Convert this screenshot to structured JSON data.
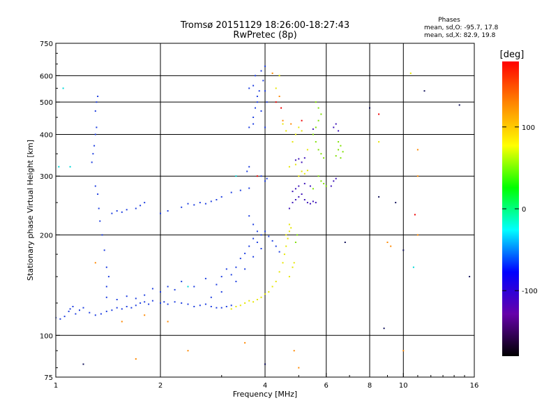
{
  "chart_data": {
    "type": "scatter",
    "title": "Tromsø 20151129 18:26:00-18:27:43",
    "subtitle": "RwPretec (8p)",
    "xlabel": "Frequency [MHz]",
    "ylabel": "Stationary phase Virtual Height [km]",
    "x_scale": "log",
    "y_scale": "log",
    "xlim": [
      1,
      16
    ],
    "ylim": [
      75,
      750
    ],
    "x_ticks": [
      1,
      2,
      4,
      6,
      8,
      10,
      16
    ],
    "x_tick_labels": [
      "1",
      "2",
      "4",
      "6",
      "8",
      "10",
      "16"
    ],
    "y_ticks": [
      75,
      100,
      200,
      300,
      400,
      500,
      600,
      750
    ],
    "y_tick_labels": [
      "75",
      "100",
      "200",
      "300",
      "400",
      "500",
      "600",
      "750"
    ],
    "grid": true,
    "legend": {
      "heading": "Phases",
      "lines": [
        "mean, sd,O: -95.7, 17.8",
        "mean, sd,X:  82.9, 19.8"
      ],
      "placement": "top-right"
    },
    "colorbar": {
      "label": "[deg]",
      "range": [
        -180,
        180
      ],
      "ticks": [
        100,
        0,
        -100
      ],
      "tick_labels": [
        "100",
        "0",
        "-100"
      ],
      "stops": [
        "#ff0000",
        "#ff8800",
        "#ffff00",
        "#00ff00",
        "#00ffff",
        "#0000ff",
        "#6600aa",
        "#000000"
      ],
      "placement": "right"
    },
    "series": [
      {
        "name": "",
        "color": "#1f3fe0",
        "points": [
          [
            1.0,
            113
          ],
          [
            1.03,
            112
          ],
          [
            1.06,
            114
          ],
          [
            1.09,
            118
          ],
          [
            1.1,
            120
          ],
          [
            1.12,
            122
          ],
          [
            1.14,
            116
          ],
          [
            1.17,
            119
          ],
          [
            1.2,
            121
          ],
          [
            1.25,
            117
          ],
          [
            1.3,
            115
          ],
          [
            1.35,
            116
          ],
          [
            1.4,
            118
          ],
          [
            1.45,
            119
          ],
          [
            1.5,
            121
          ],
          [
            1.55,
            120
          ],
          [
            1.6,
            122
          ],
          [
            1.65,
            121
          ],
          [
            1.7,
            123
          ],
          [
            1.75,
            125
          ],
          [
            1.8,
            126
          ],
          [
            1.85,
            124
          ],
          [
            1.9,
            127
          ],
          [
            2.0,
            125
          ],
          [
            2.05,
            126
          ],
          [
            2.1,
            124
          ],
          [
            2.2,
            126
          ],
          [
            2.3,
            125
          ],
          [
            2.4,
            124
          ],
          [
            2.5,
            122
          ],
          [
            2.6,
            123
          ],
          [
            2.7,
            124
          ],
          [
            2.8,
            122
          ],
          [
            2.9,
            121
          ],
          [
            3.0,
            121
          ],
          [
            3.1,
            122
          ],
          [
            3.2,
            123
          ],
          [
            1.4,
            130
          ],
          [
            1.5,
            128
          ],
          [
            1.6,
            131
          ],
          [
            1.7,
            129
          ],
          [
            1.8,
            132
          ],
          [
            1.9,
            138
          ],
          [
            2.0,
            135
          ],
          [
            2.1,
            140
          ],
          [
            2.2,
            137
          ],
          [
            2.3,
            145
          ],
          [
            2.5,
            140
          ],
          [
            2.7,
            148
          ],
          [
            2.9,
            142
          ],
          [
            3.0,
            150
          ],
          [
            3.1,
            158
          ],
          [
            3.2,
            152
          ],
          [
            3.3,
            160
          ],
          [
            3.4,
            170
          ],
          [
            3.5,
            176
          ],
          [
            3.6,
            185
          ],
          [
            3.7,
            195
          ],
          [
            3.8,
            190
          ],
          [
            3.9,
            200
          ],
          [
            4.0,
            205
          ],
          [
            4.1,
            198
          ],
          [
            4.2,
            192
          ],
          [
            4.3,
            185
          ],
          [
            4.4,
            178
          ],
          [
            2.8,
            130
          ],
          [
            3.0,
            135
          ],
          [
            3.3,
            145
          ],
          [
            3.5,
            158
          ],
          [
            3.7,
            172
          ],
          [
            3.9,
            182
          ],
          [
            3.6,
            228
          ],
          [
            3.7,
            215
          ],
          [
            3.8,
            205
          ],
          [
            1.45,
            232
          ],
          [
            1.5,
            236
          ],
          [
            1.55,
            234
          ],
          [
            1.6,
            238
          ],
          [
            1.7,
            240
          ],
          [
            1.75,
            245
          ],
          [
            1.8,
            250
          ],
          [
            2.0,
            232
          ],
          [
            2.1,
            236
          ],
          [
            2.3,
            242
          ],
          [
            2.4,
            248
          ],
          [
            2.5,
            246
          ],
          [
            2.6,
            250
          ],
          [
            2.7,
            248
          ],
          [
            2.8,
            252
          ],
          [
            2.9,
            255
          ],
          [
            3.0,
            260
          ],
          [
            3.2,
            268
          ],
          [
            3.4,
            272
          ],
          [
            3.6,
            276
          ],
          [
            1.27,
            330
          ],
          [
            1.28,
            350
          ],
          [
            1.29,
            370
          ],
          [
            1.3,
            400
          ],
          [
            1.31,
            420
          ],
          [
            1.3,
            470
          ],
          [
            1.31,
            500
          ],
          [
            1.32,
            520
          ],
          [
            1.3,
            280
          ],
          [
            1.32,
            265
          ],
          [
            1.33,
            240
          ],
          [
            1.34,
            220
          ],
          [
            1.36,
            200
          ],
          [
            1.38,
            180
          ],
          [
            1.4,
            160
          ],
          [
            1.42,
            150
          ],
          [
            1.4,
            140
          ],
          [
            3.6,
            320
          ],
          [
            3.6,
            420
          ],
          [
            3.7,
            430
          ],
          [
            3.7,
            450
          ],
          [
            3.75,
            480
          ],
          [
            3.8,
            500
          ],
          [
            3.8,
            520
          ],
          [
            3.85,
            540
          ],
          [
            3.6,
            550
          ],
          [
            3.7,
            560
          ],
          [
            3.75,
            600
          ],
          [
            3.9,
            620
          ],
          [
            4.0,
            640
          ],
          [
            3.95,
            580
          ],
          [
            4.0,
            540
          ],
          [
            4.05,
            500
          ],
          [
            3.9,
            470
          ],
          [
            4.0,
            420
          ],
          [
            3.55,
            310
          ],
          [
            3.9,
            300
          ],
          [
            4.0,
            290
          ],
          [
            4.05,
            295
          ]
        ]
      },
      {
        "name": "",
        "color": "#3a10b8",
        "points": [
          [
            4.7,
            240
          ],
          [
            4.8,
            250
          ],
          [
            4.9,
            255
          ],
          [
            5.0,
            260
          ],
          [
            5.1,
            265
          ],
          [
            5.2,
            255
          ],
          [
            5.3,
            250
          ],
          [
            5.4,
            248
          ],
          [
            5.5,
            252
          ],
          [
            5.6,
            250
          ],
          [
            4.8,
            270
          ],
          [
            4.9,
            275
          ],
          [
            5.0,
            280
          ],
          [
            5.2,
            285
          ],
          [
            5.4,
            280
          ],
          [
            6.2,
            280
          ],
          [
            6.3,
            290
          ],
          [
            6.4,
            295
          ],
          [
            6.3,
            420
          ],
          [
            6.4,
            430
          ],
          [
            6.5,
            410
          ],
          [
            4.9,
            335
          ],
          [
            5.0,
            338
          ],
          [
            5.1,
            330
          ],
          [
            5.2,
            340
          ],
          [
            5.5,
            415
          ]
        ]
      },
      {
        "name": "",
        "color": "#e6e600",
        "points": [
          [
            3.2,
            120
          ],
          [
            3.3,
            122
          ],
          [
            3.4,
            123
          ],
          [
            3.5,
            125
          ],
          [
            3.6,
            127
          ],
          [
            3.7,
            126
          ],
          [
            3.8,
            128
          ],
          [
            3.9,
            130
          ],
          [
            4.0,
            133
          ],
          [
            4.1,
            135
          ],
          [
            4.2,
            140
          ],
          [
            4.3,
            145
          ],
          [
            4.4,
            155
          ],
          [
            4.5,
            165
          ],
          [
            4.55,
            175
          ],
          [
            4.6,
            185
          ],
          [
            4.65,
            195
          ],
          [
            4.7,
            205
          ],
          [
            4.75,
            210
          ],
          [
            4.6,
            200
          ],
          [
            4.7,
            215
          ],
          [
            4.8,
            160
          ],
          [
            4.85,
            165
          ],
          [
            4.7,
            150
          ],
          [
            4.9,
            400
          ],
          [
            5.0,
            420
          ],
          [
            5.1,
            410
          ],
          [
            4.8,
            380
          ],
          [
            5.3,
            360
          ],
          [
            5.0,
            300
          ],
          [
            5.1,
            310
          ],
          [
            5.2,
            305
          ],
          [
            5.3,
            312
          ],
          [
            4.7,
            320
          ],
          [
            4.9,
            325
          ],
          [
            4.5,
            430
          ],
          [
            4.6,
            410
          ],
          [
            4.4,
            600
          ],
          [
            4.3,
            550
          ],
          [
            10.5,
            610
          ],
          [
            8.5,
            380
          ]
        ]
      },
      {
        "name": "",
        "color": "#7ee000",
        "points": [
          [
            5.6,
            500
          ],
          [
            5.7,
            480
          ],
          [
            5.8,
            460
          ],
          [
            5.7,
            440
          ],
          [
            5.6,
            420
          ],
          [
            5.5,
            400
          ],
          [
            5.6,
            380
          ],
          [
            5.7,
            360
          ],
          [
            5.8,
            350
          ],
          [
            5.9,
            340
          ],
          [
            6.5,
            360
          ],
          [
            6.6,
            370
          ],
          [
            6.7,
            355
          ],
          [
            6.6,
            340
          ],
          [
            6.4,
            345
          ],
          [
            6.5,
            380
          ],
          [
            5.7,
            300
          ],
          [
            5.8,
            290
          ],
          [
            5.9,
            285
          ],
          [
            6.0,
            280
          ],
          [
            5.5,
            275
          ],
          [
            4.9,
            190
          ],
          [
            4.95,
            200
          ]
        ]
      },
      {
        "name": "",
        "color": "#ff8800",
        "points": [
          [
            1.3,
            165
          ],
          [
            1.8,
            115
          ],
          [
            1.55,
            110
          ],
          [
            2.1,
            110
          ],
          [
            2.4,
            90
          ],
          [
            3.5,
            95
          ],
          [
            4.5,
            440
          ],
          [
            4.2,
            610
          ],
          [
            4.4,
            520
          ],
          [
            4.75,
            430
          ],
          [
            4.85,
            90
          ],
          [
            5.0,
            80
          ],
          [
            9.0,
            190
          ],
          [
            9.2,
            185
          ],
          [
            11.0,
            300
          ],
          [
            11.0,
            200
          ],
          [
            11.0,
            360
          ],
          [
            10.0,
            90
          ],
          [
            1.7,
            85
          ]
        ]
      },
      {
        "name": "",
        "color": "#ee0000",
        "points": [
          [
            4.45,
            480
          ],
          [
            4.3,
            500
          ],
          [
            5.1,
            440
          ],
          [
            10.8,
            230
          ],
          [
            3.8,
            300
          ],
          [
            8.5,
            460
          ]
        ]
      },
      {
        "name": "",
        "color": "#00d8d8",
        "points": [
          [
            1.05,
            550
          ],
          [
            1.02,
            320
          ],
          [
            2.4,
            140
          ],
          [
            10.7,
            160
          ],
          [
            1.1,
            320
          ],
          [
            3.3,
            300
          ]
        ]
      },
      {
        "name": "",
        "color": "#10105a",
        "points": [
          [
            1.2,
            82
          ],
          [
            4.0,
            82
          ],
          [
            8.0,
            480
          ],
          [
            8.5,
            260
          ],
          [
            8.8,
            105
          ],
          [
            10.0,
            180
          ],
          [
            11.5,
            540
          ],
          [
            14.5,
            490
          ],
          [
            15.5,
            150
          ],
          [
            6.8,
            190
          ],
          [
            9.5,
            250
          ]
        ]
      }
    ]
  }
}
